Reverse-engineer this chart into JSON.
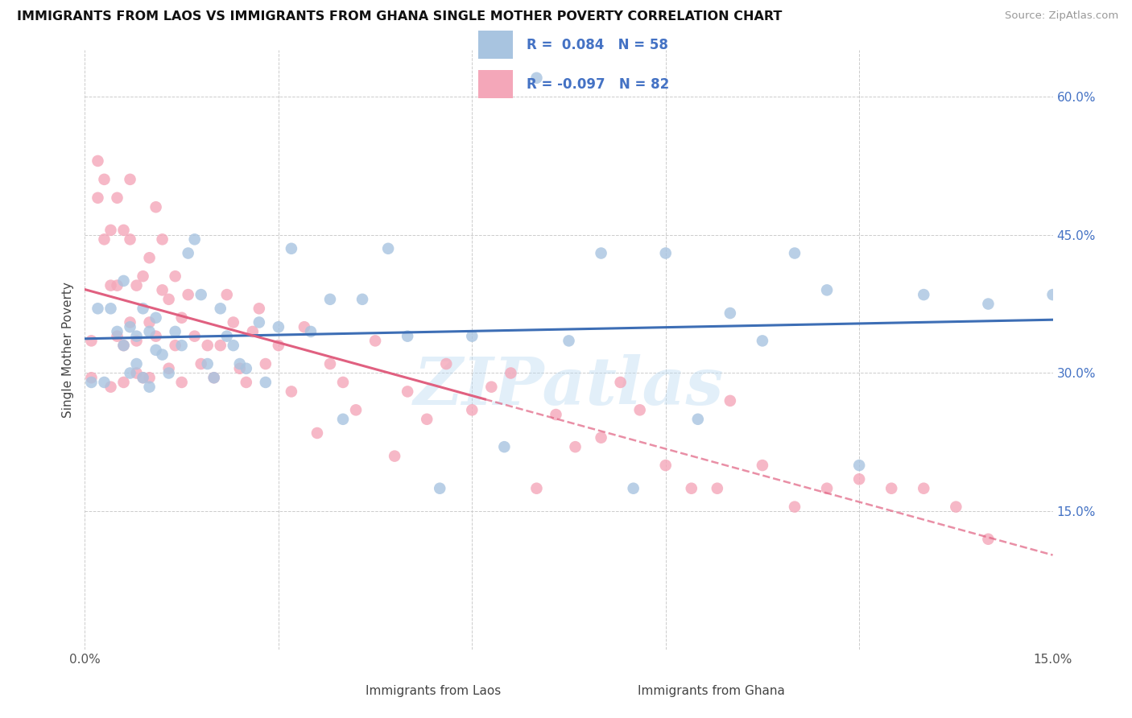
{
  "title": "IMMIGRANTS FROM LAOS VS IMMIGRANTS FROM GHANA SINGLE MOTHER POVERTY CORRELATION CHART",
  "source": "Source: ZipAtlas.com",
  "ylabel": "Single Mother Poverty",
  "watermark": "ZIPatlas",
  "laos_R": 0.084,
  "laos_N": 58,
  "ghana_R": -0.097,
  "ghana_N": 82,
  "xlim": [
    0.0,
    0.15
  ],
  "ylim": [
    0.0,
    0.65
  ],
  "laos_color": "#a8c4e0",
  "ghana_color": "#f4a7b9",
  "laos_line_color": "#3d6eb5",
  "ghana_line_color": "#e06080",
  "legend_label_laos": "Immigrants from Laos",
  "legend_label_ghana": "Immigrants from Ghana",
  "laos_x": [
    0.001,
    0.002,
    0.003,
    0.004,
    0.005,
    0.006,
    0.006,
    0.007,
    0.007,
    0.008,
    0.008,
    0.009,
    0.009,
    0.01,
    0.01,
    0.011,
    0.011,
    0.012,
    0.013,
    0.014,
    0.015,
    0.016,
    0.017,
    0.018,
    0.019,
    0.02,
    0.021,
    0.022,
    0.023,
    0.024,
    0.025,
    0.027,
    0.028,
    0.03,
    0.032,
    0.035,
    0.038,
    0.04,
    0.043,
    0.047,
    0.05,
    0.055,
    0.06,
    0.065,
    0.07,
    0.075,
    0.08,
    0.085,
    0.09,
    0.095,
    0.1,
    0.105,
    0.11,
    0.115,
    0.12,
    0.13,
    0.14,
    0.15
  ],
  "laos_y": [
    0.29,
    0.37,
    0.29,
    0.37,
    0.345,
    0.33,
    0.4,
    0.3,
    0.35,
    0.31,
    0.34,
    0.295,
    0.37,
    0.285,
    0.345,
    0.325,
    0.36,
    0.32,
    0.3,
    0.345,
    0.33,
    0.43,
    0.445,
    0.385,
    0.31,
    0.295,
    0.37,
    0.34,
    0.33,
    0.31,
    0.305,
    0.355,
    0.29,
    0.35,
    0.435,
    0.345,
    0.38,
    0.25,
    0.38,
    0.435,
    0.34,
    0.175,
    0.34,
    0.22,
    0.62,
    0.335,
    0.43,
    0.175,
    0.43,
    0.25,
    0.365,
    0.335,
    0.43,
    0.39,
    0.2,
    0.385,
    0.375,
    0.385
  ],
  "ghana_x": [
    0.001,
    0.001,
    0.002,
    0.002,
    0.003,
    0.003,
    0.004,
    0.004,
    0.004,
    0.005,
    0.005,
    0.005,
    0.006,
    0.006,
    0.006,
    0.007,
    0.007,
    0.007,
    0.008,
    0.008,
    0.008,
    0.009,
    0.009,
    0.01,
    0.01,
    0.01,
    0.011,
    0.011,
    0.012,
    0.012,
    0.013,
    0.013,
    0.014,
    0.014,
    0.015,
    0.015,
    0.016,
    0.017,
    0.018,
    0.019,
    0.02,
    0.021,
    0.022,
    0.023,
    0.024,
    0.025,
    0.026,
    0.027,
    0.028,
    0.03,
    0.032,
    0.034,
    0.036,
    0.038,
    0.04,
    0.042,
    0.045,
    0.048,
    0.05,
    0.053,
    0.056,
    0.06,
    0.063,
    0.066,
    0.07,
    0.073,
    0.076,
    0.08,
    0.083,
    0.086,
    0.09,
    0.094,
    0.098,
    0.1,
    0.105,
    0.11,
    0.115,
    0.12,
    0.125,
    0.13,
    0.135,
    0.14
  ],
  "ghana_y": [
    0.295,
    0.335,
    0.49,
    0.53,
    0.445,
    0.51,
    0.395,
    0.455,
    0.285,
    0.34,
    0.49,
    0.395,
    0.455,
    0.33,
    0.29,
    0.355,
    0.51,
    0.445,
    0.395,
    0.335,
    0.3,
    0.405,
    0.295,
    0.355,
    0.425,
    0.295,
    0.34,
    0.48,
    0.39,
    0.445,
    0.305,
    0.38,
    0.33,
    0.405,
    0.36,
    0.29,
    0.385,
    0.34,
    0.31,
    0.33,
    0.295,
    0.33,
    0.385,
    0.355,
    0.305,
    0.29,
    0.345,
    0.37,
    0.31,
    0.33,
    0.28,
    0.35,
    0.235,
    0.31,
    0.29,
    0.26,
    0.335,
    0.21,
    0.28,
    0.25,
    0.31,
    0.26,
    0.285,
    0.3,
    0.175,
    0.255,
    0.22,
    0.23,
    0.29,
    0.26,
    0.2,
    0.175,
    0.175,
    0.27,
    0.2,
    0.155,
    0.175,
    0.185,
    0.175,
    0.175,
    0.155,
    0.12
  ]
}
